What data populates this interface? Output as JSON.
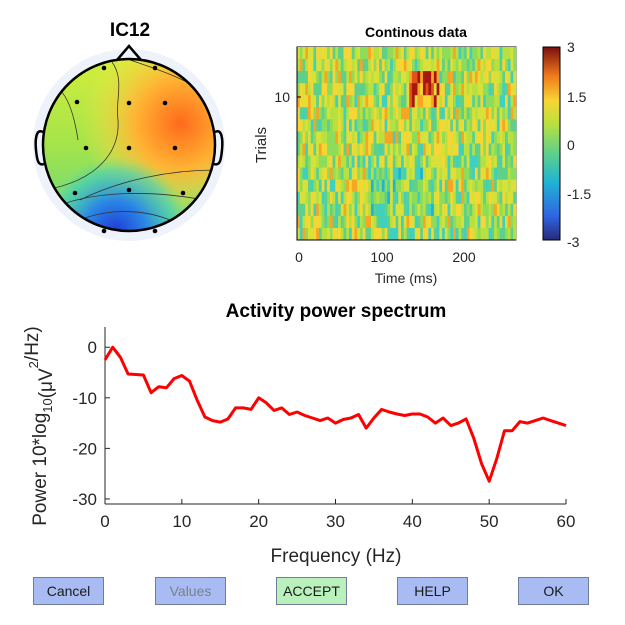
{
  "topo": {
    "title": "IC12"
  },
  "erp_image": {
    "title": "Continous data",
    "xlabel": "Time (ms)",
    "ylabel": "Trials",
    "x_ticks": [
      "0",
      "100",
      "200"
    ],
    "y_ticks": [
      "10"
    ],
    "colorbar_ticks": [
      "3",
      "1.5",
      "0",
      "-1.5",
      "-3"
    ]
  },
  "chart_data": {
    "type": "line",
    "title": "Activity power spectrum",
    "xlabel": "Frequency (Hz)",
    "ylabel": "Power 10*log10(μV2/Hz)",
    "xlim": [
      0,
      60
    ],
    "ylim": [
      -31,
      4
    ],
    "x_ticks": [
      0,
      10,
      20,
      30,
      40,
      50,
      60
    ],
    "y_ticks": [
      0,
      -10,
      -20,
      -30
    ],
    "grid": false,
    "series": [
      {
        "color": "#ff0000",
        "x": [
          0,
          1,
          2,
          3,
          4,
          5,
          6,
          7,
          8,
          9,
          10,
          11,
          12,
          13,
          14,
          15,
          16,
          17,
          18,
          19,
          20,
          21,
          22,
          23,
          24,
          25,
          26,
          27,
          28,
          29,
          30,
          31,
          32,
          33,
          34,
          35,
          36,
          37,
          38,
          39,
          40,
          41,
          42,
          43,
          44,
          45,
          46,
          47,
          48,
          49,
          50,
          51,
          52,
          53,
          54,
          55,
          56,
          57,
          58,
          59,
          60
        ],
        "y": [
          -2.5,
          0,
          -2,
          -5.3,
          -5.4,
          -5.5,
          -9,
          -7.8,
          -8,
          -6.2,
          -5.6,
          -6.7,
          -10.5,
          -13.8,
          -14.5,
          -14.8,
          -14.2,
          -12,
          -12,
          -12.3,
          -10,
          -11,
          -12.5,
          -12,
          -13.3,
          -12.8,
          -13.5,
          -14,
          -14.5,
          -14,
          -15,
          -14.3,
          -14,
          -13.3,
          -16,
          -14,
          -12.3,
          -12.8,
          -13.2,
          -13.5,
          -13.2,
          -13.2,
          -13.8,
          -15,
          -14,
          -15.5,
          -15,
          -14.2,
          -18,
          -23,
          -26.5,
          -22,
          -16.5,
          -16.5,
          -14.7,
          -15,
          -14.5,
          -14,
          -14.5,
          -15,
          -15.5
        ]
      }
    ]
  },
  "buttons": {
    "cancel": "Cancel",
    "values": "Values",
    "accept": "ACCEPT",
    "help": "HELP",
    "ok": "OK"
  }
}
